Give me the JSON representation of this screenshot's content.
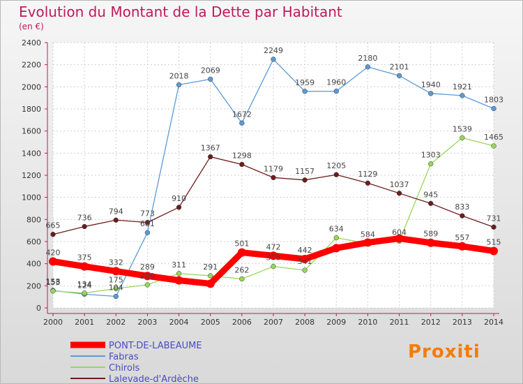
{
  "title": "Evolution du Montant de la Dette par Habitant",
  "subtitle": "(en €)",
  "logo": "Proxiti",
  "chart_data": {
    "type": "line",
    "x": [
      "2000",
      "2001",
      "2002",
      "2003",
      "2004",
      "2005",
      "2006",
      "2007",
      "2008",
      "2009",
      "2010",
      "2011",
      "2012",
      "2013",
      "2014"
    ],
    "ylim": [
      0,
      2400
    ],
    "yticks": [
      0,
      200,
      400,
      600,
      800,
      1000,
      1200,
      1400,
      1600,
      1800,
      2000,
      2200,
      2400
    ],
    "grid": true,
    "legend_position": "bottom-left",
    "series": [
      {
        "name": "PONT-DE-LABEAUME",
        "color": "#ff0000",
        "values": [
          420,
          375,
          332,
          289,
          249,
          219,
          501,
          472,
          442,
          541,
          591,
          628,
          589,
          557,
          515
        ],
        "labels": [
          "420",
          "375",
          "332",
          "289",
          "",
          "",
          "501",
          "472",
          "442",
          "",
          "",
          "",
          "589",
          "557",
          "515"
        ]
      },
      {
        "name": "Fabras",
        "color": "#5b9bd5",
        "values": [
          158,
          124,
          104,
          681,
          2018,
          2069,
          1672,
          2249,
          1959,
          1960,
          2180,
          2101,
          1940,
          1921,
          1803
        ],
        "labels": [
          "158",
          "124",
          "104",
          "681",
          "2018",
          "2069",
          "1672",
          "2249",
          "1959",
          "1960",
          "2180",
          "2101",
          "1940",
          "1921",
          "1803"
        ]
      },
      {
        "name": "Chirols",
        "color": "#9ad65a",
        "values": [
          153,
          134,
          175,
          209,
          311,
          291,
          262,
          375,
          341,
          634,
          584,
          604,
          1303,
          1539,
          1465
        ],
        "labels": [
          "153",
          "134",
          "175",
          "209",
          "311",
          "291",
          "262",
          "375",
          "341",
          "634",
          "584",
          "604",
          "1303",
          "1539",
          "1465"
        ]
      },
      {
        "name": "Lalevade-d'Ardèche",
        "color": "#6b1d1d",
        "values": [
          665,
          736,
          794,
          773,
          910,
          1367,
          1298,
          1179,
          1157,
          1205,
          1129,
          1037,
          945,
          833,
          731
        ],
        "labels": [
          "665",
          "736",
          "794",
          "773",
          "910",
          "1367",
          "1298",
          "1179",
          "1157",
          "1205",
          "1129",
          "1037",
          "945",
          "833",
          "731"
        ]
      }
    ]
  }
}
